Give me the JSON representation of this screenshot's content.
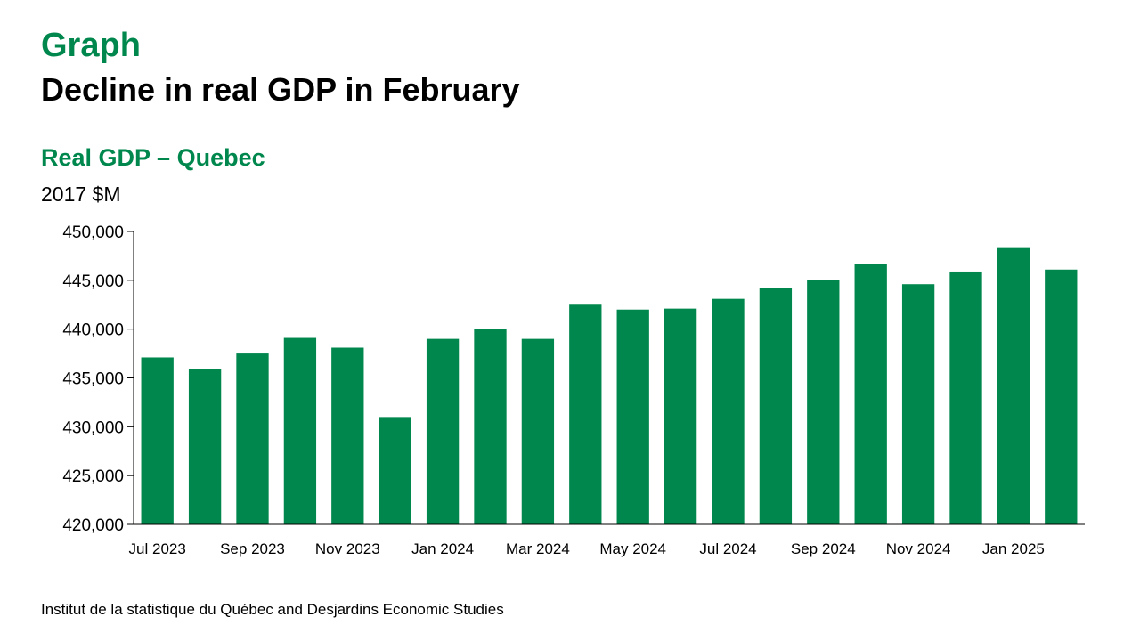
{
  "header": {
    "kicker": "Graph",
    "title": "Decline in real GDP in February"
  },
  "chart_data": {
    "type": "bar",
    "title": "Real GDP – Quebec",
    "ylabel": "2017 $M",
    "xlabel": "",
    "ylim": [
      420000,
      450000
    ],
    "yticks": [
      420000,
      425000,
      430000,
      435000,
      440000,
      445000,
      450000
    ],
    "ytick_labels": [
      "420,000",
      "425,000",
      "430,000",
      "435,000",
      "440,000",
      "445,000",
      "450,000"
    ],
    "categories": [
      "Jul 2023",
      "Aug 2023",
      "Sep 2023",
      "Oct 2023",
      "Nov 2023",
      "Dec 2023",
      "Jan 2024",
      "Feb 2024",
      "Mar 2024",
      "Apr 2024",
      "May 2024",
      "Jun 2024",
      "Jul 2024",
      "Aug 2024",
      "Sep 2024",
      "Oct 2024",
      "Nov 2024",
      "Dec 2024",
      "Jan 2025",
      "Feb 2025"
    ],
    "xtick_labels": [
      "Jul 2023",
      "",
      "Sep 2023",
      "",
      "Nov 2023",
      "",
      "Jan 2024",
      "",
      "Mar 2024",
      "",
      "May 2024",
      "",
      "Jul 2024",
      "",
      "Sep 2024",
      "",
      "Nov 2024",
      "",
      "Jan 2025",
      ""
    ],
    "values": [
      437100,
      435900,
      437500,
      439100,
      438100,
      431000,
      439000,
      440000,
      439000,
      442500,
      442000,
      442100,
      443100,
      444200,
      445000,
      446700,
      444600,
      445900,
      448300,
      446100
    ],
    "grid": false,
    "bar_color": "#00874d"
  },
  "footer": {
    "source": "Institut de la statistique du Québec and Desjardins Economic Studies"
  }
}
